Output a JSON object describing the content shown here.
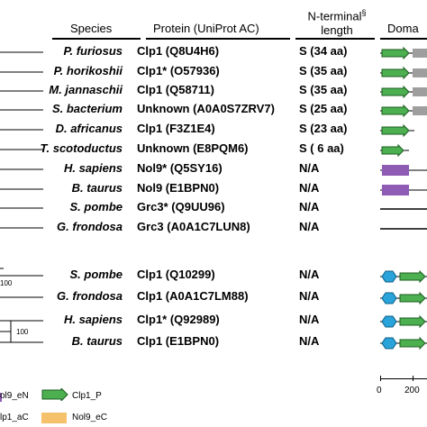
{
  "headers": {
    "species": "Species",
    "protein": "Protein (UniProt AC)",
    "nterm_line1": "N-terminal",
    "nterm_sup": "§",
    "nterm_line2": "length",
    "domain": "Doma"
  },
  "rows": [
    {
      "species": "P. furiosus",
      "protein": "Clp1 (Q8U4H6)",
      "nterm": "S (34 aa)",
      "domain": "green-gray"
    },
    {
      "species": "P. horikoshii",
      "protein": "Clp1* (O57936)",
      "nterm": "S (35 aa)",
      "domain": "green-gray"
    },
    {
      "species": "M. jannaschii",
      "protein": "Clp1 (Q58711)",
      "nterm": "S (35 aa)",
      "domain": "green-gray"
    },
    {
      "species": "S. bacterium",
      "protein": "Unknown (A0A0S7ZRV7)",
      "nterm": "S (25 aa)",
      "domain": "green-gray"
    },
    {
      "species": "D. africanus",
      "protein": "Clp1 (F3Z1E4)",
      "nterm": "S (23 aa)",
      "domain": "green"
    },
    {
      "species": "T. scotoductus",
      "protein": "Unknown (E8PQM6)",
      "nterm": "S ( 6 aa)",
      "domain": "green-short"
    },
    {
      "species": "H. sapiens",
      "protein": "Nol9* (Q5SY16)",
      "nterm": "N/A",
      "domain": "purple"
    },
    {
      "species": "B. taurus",
      "protein": "Nol9 (E1BPN0)",
      "nterm": "N/A",
      "domain": "purple"
    },
    {
      "species": "S. pombe",
      "protein": "Grc3* (Q9UU96)",
      "nterm": "N/A",
      "domain": "line"
    },
    {
      "species": "G. frondosa",
      "protein": "Grc3 (A0A1C7LUN8)",
      "nterm": "N/A",
      "domain": "line"
    },
    {
      "species": "S. pombe",
      "protein": "Clp1 (Q10299)",
      "nterm": "N/A",
      "domain": "hex-green"
    },
    {
      "species": "G. frondosa",
      "protein": "Clp1 (A0A1C7LM88)",
      "nterm": "N/A",
      "domain": "hex-green"
    },
    {
      "species": "H. sapiens",
      "protein": "Clp1* (Q92989)",
      "nterm": "N/A",
      "domain": "hex-green"
    },
    {
      "species": "B. taurus",
      "protein": "Clp1 (E1BPN0)",
      "nterm": "N/A",
      "domain": "hex-green"
    }
  ],
  "tree": {
    "bootstrap_1": "100",
    "bootstrap_2": "100"
  },
  "legend": {
    "item1": "ol9_eN",
    "item2": "Clp1_P",
    "item3": "lp1_aC",
    "item4": "Nol9_eC"
  },
  "scale": {
    "tick0": "0",
    "tick1": "200"
  },
  "colors": {
    "green": "#4caf50",
    "gray": "#9e9e9e",
    "purple": "#8e5bb5",
    "cyan": "#29a3d9",
    "orange": "#f5c26b"
  }
}
